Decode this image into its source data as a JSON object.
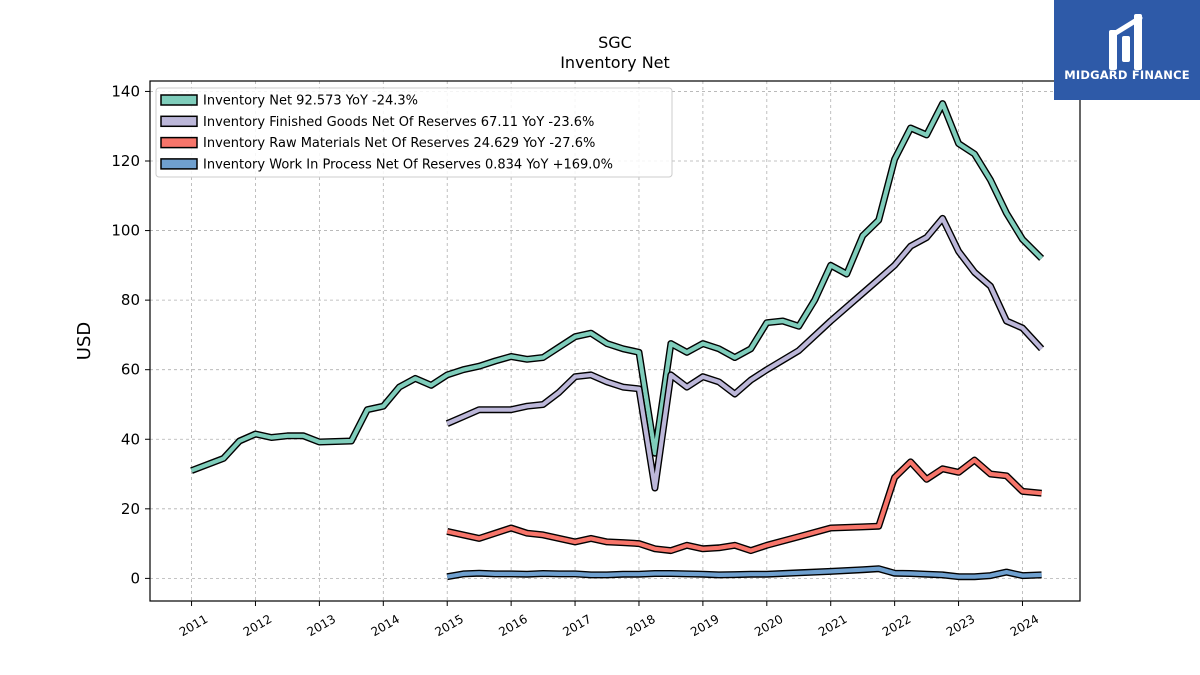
{
  "brand": {
    "name": "MIDGARD FINANCE",
    "color": "#2e5aa8"
  },
  "chart_data": {
    "type": "line",
    "title": "SGC",
    "subtitle": "Inventory Net",
    "ylabel": "USD",
    "xlabel": "",
    "ylim": [
      -6.5,
      143
    ],
    "xlim": [
      2010.35,
      2024.9
    ],
    "yticks": [
      0,
      20,
      40,
      60,
      80,
      100,
      120,
      140
    ],
    "xticks": [
      "2011",
      "2012",
      "2013",
      "2014",
      "2015",
      "2016",
      "2017",
      "2018",
      "2019",
      "2020",
      "2021",
      "2022",
      "2023",
      "2024"
    ],
    "grid": true,
    "legend_position": "top-left",
    "series": [
      {
        "name": "Inventory Net",
        "legend_label": "Inventory Net  92.573 YoY -24.3%",
        "color": "#7fcdbb",
        "points": [
          [
            2011.0,
            31.0
          ],
          [
            2011.5,
            34.5
          ],
          [
            2011.75,
            39.5
          ],
          [
            2012.0,
            41.5
          ],
          [
            2012.25,
            40.5
          ],
          [
            2012.5,
            41.0
          ],
          [
            2012.75,
            41.0
          ],
          [
            2013.0,
            39.2
          ],
          [
            2013.5,
            39.5
          ],
          [
            2013.75,
            48.5
          ],
          [
            2014.0,
            49.5
          ],
          [
            2014.25,
            55.0
          ],
          [
            2014.5,
            57.5
          ],
          [
            2014.75,
            55.5
          ],
          [
            2015.0,
            58.5
          ],
          [
            2015.25,
            60.0
          ],
          [
            2015.5,
            61.0
          ],
          [
            2015.75,
            62.5
          ],
          [
            2016.0,
            63.8
          ],
          [
            2016.25,
            63.0
          ],
          [
            2016.5,
            63.5
          ],
          [
            2016.75,
            66.5
          ],
          [
            2017.0,
            69.5
          ],
          [
            2017.25,
            70.5
          ],
          [
            2017.5,
            67.5
          ],
          [
            2017.75,
            66.0
          ],
          [
            2018.0,
            65.0
          ],
          [
            2018.25,
            36.0
          ],
          [
            2018.5,
            67.5
          ],
          [
            2018.75,
            65.0
          ],
          [
            2019.0,
            67.5
          ],
          [
            2019.25,
            66.0
          ],
          [
            2019.5,
            63.5
          ],
          [
            2019.75,
            66.0
          ],
          [
            2020.0,
            73.5
          ],
          [
            2020.25,
            74.0
          ],
          [
            2020.5,
            72.5
          ],
          [
            2020.75,
            80.0
          ],
          [
            2021.0,
            90.0
          ],
          [
            2021.25,
            87.5
          ],
          [
            2021.5,
            98.5
          ],
          [
            2021.75,
            103.0
          ],
          [
            2022.0,
            120.5
          ],
          [
            2022.25,
            129.5
          ],
          [
            2022.5,
            127.5
          ],
          [
            2022.75,
            136.5
          ],
          [
            2023.0,
            125.0
          ],
          [
            2023.25,
            122.0
          ],
          [
            2023.5,
            114.5
          ],
          [
            2023.75,
            105.0
          ],
          [
            2024.0,
            97.5
          ],
          [
            2024.3,
            92.0
          ]
        ]
      },
      {
        "name": "Inventory Finished Goods Net Of Reserves",
        "legend_label": "Inventory Finished Goods Net Of Reserves  67.11 YoY -23.6%",
        "color": "#bcb7d9",
        "points": [
          [
            2015.0,
            44.5
          ],
          [
            2015.25,
            46.5
          ],
          [
            2015.5,
            48.5
          ],
          [
            2015.75,
            48.5
          ],
          [
            2016.0,
            48.5
          ],
          [
            2016.25,
            49.5
          ],
          [
            2016.5,
            50.0
          ],
          [
            2016.75,
            53.5
          ],
          [
            2017.0,
            58.0
          ],
          [
            2017.25,
            58.5
          ],
          [
            2017.5,
            56.5
          ],
          [
            2017.75,
            55.0
          ],
          [
            2018.0,
            54.5
          ],
          [
            2018.25,
            26.0
          ],
          [
            2018.5,
            58.5
          ],
          [
            2018.75,
            55.0
          ],
          [
            2019.0,
            58.0
          ],
          [
            2019.25,
            56.5
          ],
          [
            2019.5,
            53.0
          ],
          [
            2019.75,
            57.0
          ],
          [
            2020.0,
            60.0
          ],
          [
            2020.5,
            65.5
          ],
          [
            2021.0,
            74.0
          ],
          [
            2021.5,
            82.0
          ],
          [
            2021.75,
            86.0
          ],
          [
            2022.0,
            90.0
          ],
          [
            2022.25,
            95.5
          ],
          [
            2022.5,
            98.0
          ],
          [
            2022.75,
            103.5
          ],
          [
            2023.0,
            94.0
          ],
          [
            2023.25,
            88.0
          ],
          [
            2023.5,
            84.0
          ],
          [
            2023.75,
            74.0
          ],
          [
            2024.0,
            72.0
          ],
          [
            2024.3,
            66.0
          ]
        ]
      },
      {
        "name": "Inventory Raw Materials Net Of Reserves",
        "legend_label": "Inventory Raw Materials Net Of Reserves  24.629 YoY -27.6%",
        "color": "#f7756a",
        "points": [
          [
            2015.0,
            13.5
          ],
          [
            2015.5,
            11.5
          ],
          [
            2015.75,
            13.0
          ],
          [
            2016.0,
            14.5
          ],
          [
            2016.25,
            13.0
          ],
          [
            2016.5,
            12.5
          ],
          [
            2016.75,
            11.5
          ],
          [
            2017.0,
            10.5
          ],
          [
            2017.25,
            11.5
          ],
          [
            2017.5,
            10.5
          ],
          [
            2017.75,
            10.3
          ],
          [
            2018.0,
            10.0
          ],
          [
            2018.25,
            8.5
          ],
          [
            2018.5,
            8.0
          ],
          [
            2018.75,
            9.5
          ],
          [
            2019.0,
            8.5
          ],
          [
            2019.25,
            8.8
          ],
          [
            2019.5,
            9.5
          ],
          [
            2019.75,
            8.0
          ],
          [
            2020.0,
            9.5
          ],
          [
            2020.5,
            12.0
          ],
          [
            2021.0,
            14.5
          ],
          [
            2021.5,
            14.8
          ],
          [
            2021.75,
            15.0
          ],
          [
            2022.0,
            29.0
          ],
          [
            2022.25,
            33.5
          ],
          [
            2022.5,
            28.5
          ],
          [
            2022.75,
            31.5
          ],
          [
            2023.0,
            30.5
          ],
          [
            2023.25,
            34.0
          ],
          [
            2023.5,
            30.0
          ],
          [
            2023.75,
            29.5
          ],
          [
            2024.0,
            25.0
          ],
          [
            2024.3,
            24.5
          ]
        ]
      },
      {
        "name": "Inventory Work In Process Net Of Reserves",
        "legend_label": "Inventory Work In Process Net Of Reserves  0.834 YoY +169.0%",
        "color": "#6fa0cf",
        "points": [
          [
            2015.0,
            0.5
          ],
          [
            2015.25,
            1.3
          ],
          [
            2015.5,
            1.5
          ],
          [
            2015.75,
            1.3
          ],
          [
            2016.0,
            1.3
          ],
          [
            2016.25,
            1.2
          ],
          [
            2016.5,
            1.4
          ],
          [
            2016.75,
            1.3
          ],
          [
            2017.0,
            1.3
          ],
          [
            2017.25,
            1.0
          ],
          [
            2017.5,
            1.0
          ],
          [
            2017.75,
            1.2
          ],
          [
            2018.0,
            1.2
          ],
          [
            2018.25,
            1.4
          ],
          [
            2018.5,
            1.4
          ],
          [
            2018.75,
            1.3
          ],
          [
            2019.0,
            1.2
          ],
          [
            2019.25,
            1.0
          ],
          [
            2019.5,
            1.1
          ],
          [
            2019.75,
            1.2
          ],
          [
            2020.0,
            1.2
          ],
          [
            2020.5,
            1.6
          ],
          [
            2021.0,
            2.0
          ],
          [
            2021.5,
            2.5
          ],
          [
            2021.75,
            2.8
          ],
          [
            2022.0,
            1.5
          ],
          [
            2022.25,
            1.4
          ],
          [
            2022.5,
            1.2
          ],
          [
            2022.75,
            1.0
          ],
          [
            2023.0,
            0.5
          ],
          [
            2023.25,
            0.5
          ],
          [
            2023.5,
            0.8
          ],
          [
            2023.75,
            1.8
          ],
          [
            2024.0,
            0.8
          ],
          [
            2024.3,
            1.0
          ]
        ]
      }
    ]
  }
}
